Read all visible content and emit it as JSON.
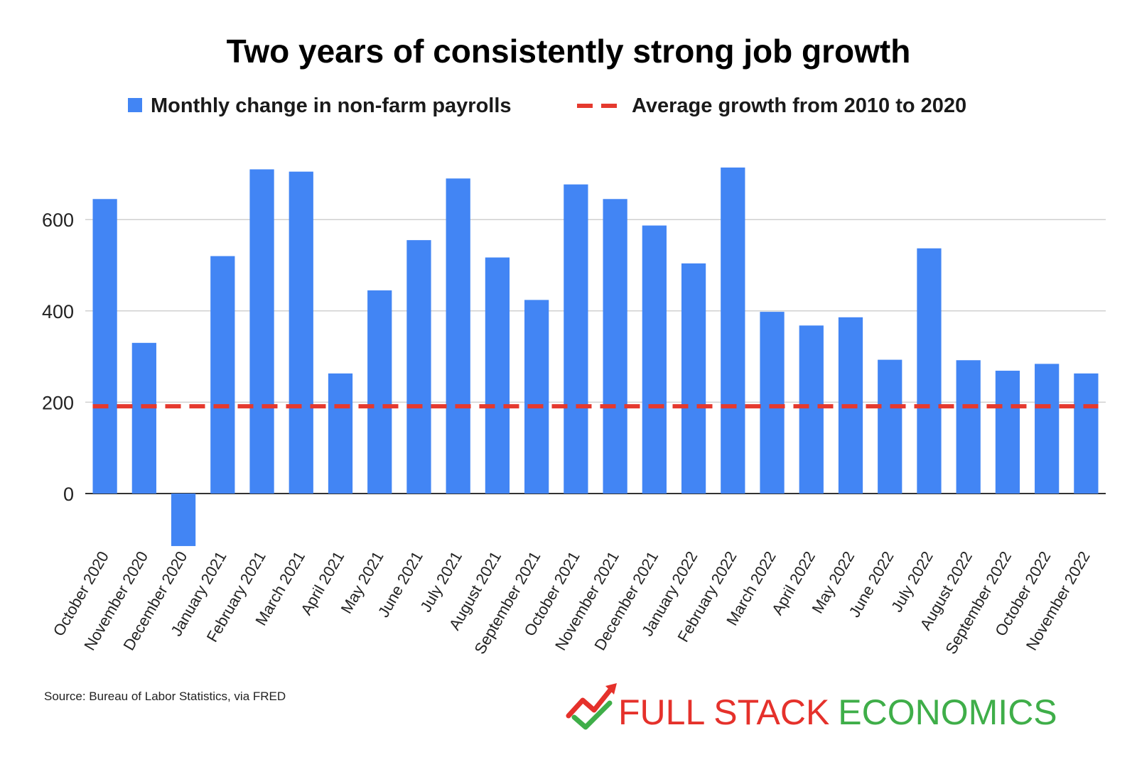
{
  "chart_data": {
    "type": "bar",
    "title": "Two years of consistently strong job growth",
    "categories": [
      "October 2020",
      "November 2020",
      "December 2020",
      "January 2021",
      "February 2021",
      "March 2021",
      "April 2021",
      "May 2021",
      "June 2021",
      "July 2021",
      "August 2021",
      "September 2021",
      "October 2021",
      "November 2021",
      "December 2021",
      "January 2022",
      "February 2022",
      "March 2022",
      "April 2022",
      "May 2022",
      "June 2022",
      "July 2022",
      "August 2022",
      "September 2022",
      "October 2022",
      "November 2022"
    ],
    "series": [
      {
        "name": "Monthly change in non-farm payrolls",
        "color": "#4285f4",
        "values": [
          645,
          330,
          -115,
          520,
          710,
          705,
          263,
          445,
          555,
          690,
          517,
          424,
          677,
          645,
          587,
          504,
          714,
          398,
          368,
          386,
          293,
          537,
          292,
          269,
          284,
          263
        ]
      }
    ],
    "reference_line": {
      "name": "Average growth from 2010 to 2020",
      "value": 191,
      "color": "#e5392e",
      "style": "dashed"
    },
    "ylim": [
      -130,
      760
    ],
    "yticks": [
      0,
      200,
      400,
      600
    ],
    "ytick_labels": [
      "0",
      "200",
      "400",
      "600"
    ],
    "xlabel": "",
    "ylabel": "",
    "grid": true,
    "legend_position": "top"
  },
  "source_note": "Source: Bureau of Labor Statistics, via FRED",
  "brand": {
    "part1": "FULL STACK",
    "part2": "ECONOMICS",
    "logo_icon": "chart-arrow-check-icon"
  }
}
